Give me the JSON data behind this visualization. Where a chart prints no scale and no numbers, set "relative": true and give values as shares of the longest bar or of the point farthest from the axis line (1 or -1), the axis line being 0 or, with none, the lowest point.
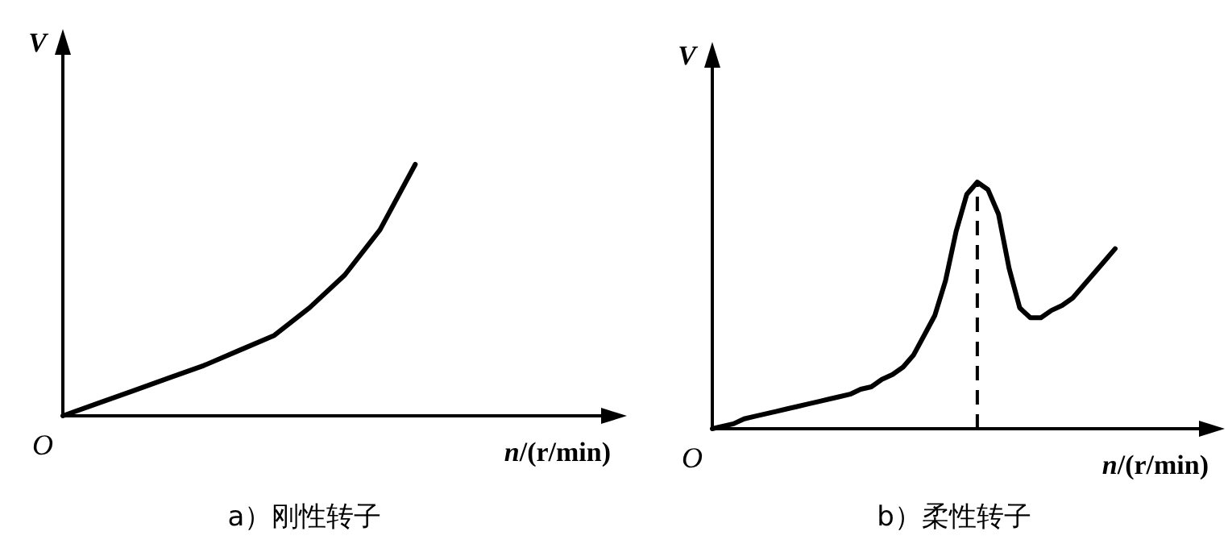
{
  "chart_data": [
    {
      "type": "line",
      "relative": true,
      "title": "a）刚性转子",
      "xlabel": "*n*/(r/min)",
      "ylabel": "V",
      "annotations": [
        "O"
      ],
      "color": "#000000",
      "categories": [
        null,
        null,
        null,
        null,
        null,
        null,
        null,
        null,
        null,
        null,
        null,
        null,
        null,
        null,
        null,
        null
      ],
      "values": [
        0,
        0.05,
        0.1,
        0.15,
        0.2,
        0.26,
        0.32,
        0.43,
        0.56,
        0.74,
        1.0,
        null,
        null,
        null,
        null,
        null
      ]
    },
    {
      "type": "line",
      "relative": true,
      "title": "b）柔性转子",
      "xlabel": "*n*/(r/min)",
      "ylabel": "V",
      "annotations": [
        "O"
      ],
      "color": "#000000",
      "categories": [
        null,
        null,
        null,
        null,
        null,
        null,
        null,
        null,
        null,
        null,
        null,
        null,
        null,
        null,
        null,
        null,
        null,
        null,
        null,
        null,
        null,
        null,
        null,
        null,
        null,
        null,
        null,
        null,
        null,
        null,
        null,
        null,
        null,
        null,
        null,
        null,
        null,
        null,
        null,
        null,
        null,
        null,
        null,
        null,
        null,
        null
      ],
      "values": [
        0,
        0.01,
        0.02,
        0.04,
        0.05,
        0.06,
        0.07,
        0.08,
        0.09,
        0.1,
        0.11,
        0.12,
        0.13,
        0.14,
        0.16,
        0.17,
        0.2,
        0.22,
        0.25,
        0.3,
        0.38,
        0.46,
        0.6,
        0.8,
        0.95,
        1.0,
        0.97,
        0.87,
        0.65,
        0.49,
        0.45,
        0.45,
        0.48,
        0.5,
        0.53,
        0.58,
        0.63,
        0.68,
        0.73,
        null,
        null,
        null,
        null,
        null,
        null,
        null
      ]
    }
  ]
}
